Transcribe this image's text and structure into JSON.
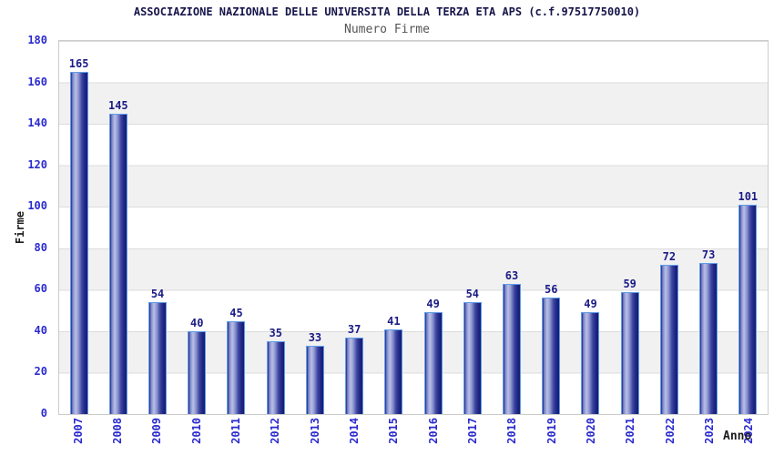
{
  "chart_data": {
    "type": "bar",
    "title": "ASSOCIAZIONE NAZIONALE DELLE UNIVERSITA DELLA TERZA ETA APS (c.f.97517750010)",
    "subtitle": "Numero Firme",
    "xlabel": "Anno",
    "ylabel": "Firme",
    "categories": [
      "2007",
      "2008",
      "2009",
      "2010",
      "2011",
      "2012",
      "2013",
      "2014",
      "2015",
      "2016",
      "2017",
      "2018",
      "2019",
      "2020",
      "2021",
      "2022",
      "2023",
      "2024"
    ],
    "values": [
      165,
      145,
      54,
      40,
      45,
      35,
      33,
      37,
      41,
      49,
      54,
      63,
      56,
      49,
      59,
      72,
      73,
      101
    ],
    "ylim": [
      0,
      180
    ],
    "ytick_step": 20,
    "yticks": [
      180,
      160,
      140,
      120,
      100,
      80,
      60,
      40,
      20,
      0
    ],
    "grid": "horizontal-bands",
    "legend": "none",
    "value_labels": "above-bars"
  },
  "theme": {
    "title-color": "#15154a",
    "subtitle-color": "#555555",
    "tick-color": "#2a2ad0",
    "value-color": "#1b1b85",
    "axis-title-color": "#1c1c1c",
    "plot-border": "#cccccc",
    "band": "#f1f1f2",
    "grid-line": "#dcdcdc",
    "bar-border": "#5f9de8",
    "bar-dark": "#1e2585",
    "bar-mid": "#7b84c6",
    "bar-light": "#b9c0e8"
  }
}
